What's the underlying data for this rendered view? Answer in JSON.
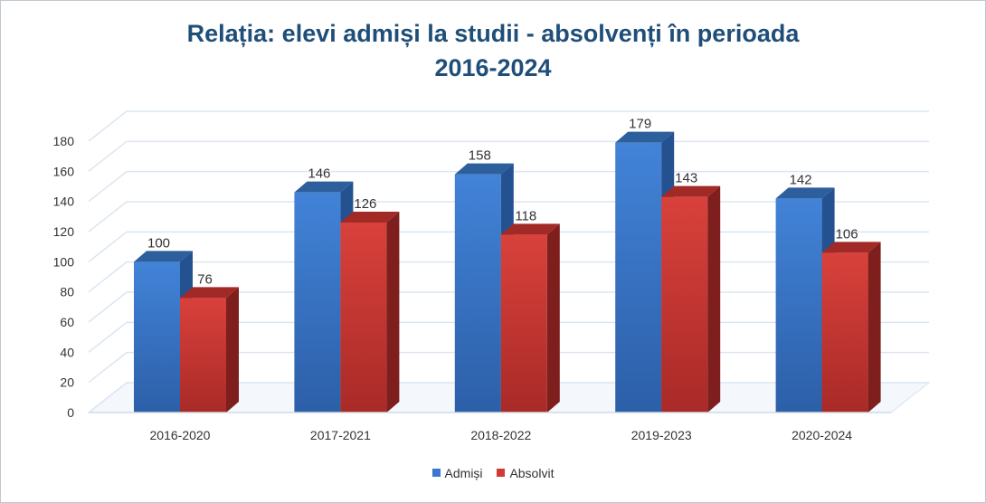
{
  "chart_data": {
    "type": "bar",
    "title_line1": "Relația: elevi admiși la studii - absolvenți în perioada",
    "title_line2": "2016-2024",
    "categories": [
      "2016-2020",
      "2017-2021",
      "2018-2022",
      "2019-2023",
      "2020-2024"
    ],
    "series": [
      {
        "name": "Admiși",
        "values": [
          100,
          146,
          158,
          179,
          142
        ],
        "color": "#3a78d0",
        "side_color": "#24518f",
        "top_color": "#2c5f9c"
      },
      {
        "name": "Absolvit",
        "values": [
          76,
          126,
          118,
          143,
          106
        ],
        "color": "#d13a36",
        "side_color": "#7e1f1d",
        "top_color": "#a12a27"
      }
    ],
    "ylim": [
      0,
      180
    ],
    "yticks": [
      0,
      20,
      40,
      60,
      80,
      100,
      120,
      140,
      160,
      180
    ],
    "grid": true,
    "legend_position": "bottom",
    "style": "3d-clustered-column"
  }
}
